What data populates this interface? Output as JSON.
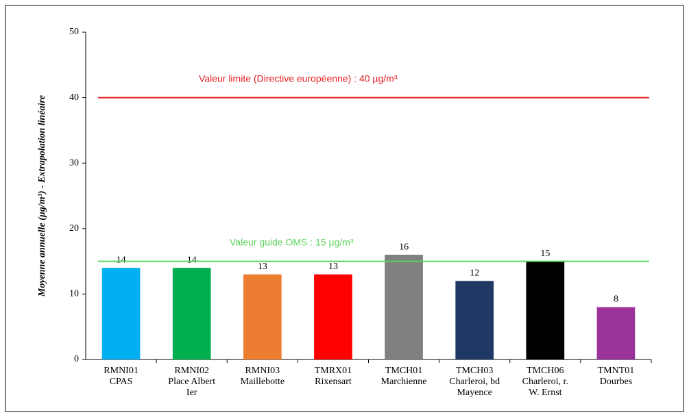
{
  "chart_data": {
    "type": "bar",
    "y_label": "Moyenne annuelle (µg/m³) - Extrapolation linéaire",
    "categories": [
      [
        "RMNI01",
        "CPAS"
      ],
      [
        "RMNI02",
        "Place Albert",
        "Ier"
      ],
      [
        "RMNI03",
        "Maillebotte"
      ],
      [
        "TMRX01",
        "Rixensart"
      ],
      [
        "TMCH01",
        "Marchienne"
      ],
      [
        "TMCH03",
        "Charleroi, bd",
        "Mayence"
      ],
      [
        "TMCH06",
        "Charleroi, r.",
        "W. Ernst"
      ],
      [
        "TMNT01",
        "Dourbes"
      ]
    ],
    "values": [
      14,
      14,
      13,
      13,
      16,
      12,
      15,
      8
    ],
    "colors": [
      "#00b0f0",
      "#00b050",
      "#ed7d31",
      "#ff0000",
      "#808080",
      "#1f3864",
      "#000000",
      "#993399"
    ],
    "reference_lines": [
      {
        "value": 40,
        "label": "Valeur limite (Directive européenne) : 40 µg/m³",
        "color": "#e31a1c"
      },
      {
        "value": 15,
        "label": "Valeur guide OMS : 15 µg/m³",
        "color": "#5ad45a"
      }
    ],
    "ylim": [
      0,
      50
    ],
    "yticks": [
      0,
      10,
      20,
      30,
      40,
      50
    ],
    "grid": false
  }
}
